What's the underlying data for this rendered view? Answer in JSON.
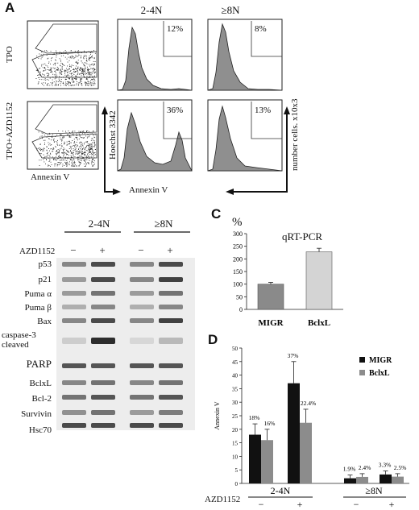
{
  "panelA": {
    "letter": "A",
    "col_labels": [
      "2-4N",
      "≥8N"
    ],
    "row_labels": [
      "TPO",
      "TPO+AZD1152"
    ],
    "x_axis_label": "Annexin V",
    "hoechst_label": "Hoechst 3342",
    "count_label": "number cells. x10x3",
    "percentages": {
      "tpo_24n": "12%",
      "tpo_8n": "8%",
      "azd_24n": "36%",
      "azd_8n": "13%"
    }
  },
  "panelB": {
    "letter": "B",
    "group_labels": [
      "2-4N",
      "≥8N"
    ],
    "treatment_label": "AZD1152",
    "lane_signs": [
      "−",
      "+",
      "−",
      "+"
    ],
    "proteins": [
      "p53",
      "p21",
      "Puma α",
      "Puma β",
      "Bax",
      "caspase-3 cleaved",
      "PARP",
      "BclxL",
      "Bcl-2",
      "Survivin",
      "Hsc70"
    ]
  },
  "panelC": {
    "letter": "C",
    "unit_label": "%",
    "chart_data": {
      "type": "bar",
      "title": "qRT-PCR",
      "categories": [
        "MIGR",
        "BclxL"
      ],
      "values": [
        100,
        228
      ],
      "errors": [
        7,
        14
      ],
      "ylim": [
        0,
        300
      ],
      "yticks": [
        "0",
        "50",
        "100",
        "150",
        "200",
        "250",
        "300"
      ],
      "colors": [
        "#8a8a8a",
        "#d4d4d4"
      ]
    }
  },
  "panelD": {
    "letter": "D",
    "treatment_label": "AZD1152",
    "group_labels": [
      "2-4N",
      "≥8N"
    ],
    "treatment_signs": [
      "−",
      "+",
      "−",
      "+"
    ],
    "chart_data": {
      "type": "bar",
      "ylabel": "Annexin V",
      "ylim": [
        0,
        50
      ],
      "yticks": [
        "0",
        "5",
        "10",
        "15",
        "20",
        "25",
        "30",
        "35",
        "40",
        "45",
        "50"
      ],
      "categories": [
        "2-4N −",
        "2-4N +",
        "≥8N −",
        "≥8N +"
      ],
      "series": [
        {
          "name": "MIGR",
          "color": "#111111",
          "values": [
            18,
            37,
            1.9,
            3.3
          ],
          "errors": [
            4,
            8,
            1.2,
            1.3
          ],
          "labels": [
            "18%",
            "37%",
            "1.9%",
            "3.3%"
          ]
        },
        {
          "name": "BclxL",
          "color": "#8c8c8c",
          "values": [
            16,
            22.4,
            2.4,
            2.5
          ],
          "errors": [
            4,
            5,
            1.2,
            1.1
          ],
          "labels": [
            "16%",
            "22.4%",
            "2.4%",
            "2.5%"
          ]
        }
      ],
      "legend": "top-right"
    }
  }
}
